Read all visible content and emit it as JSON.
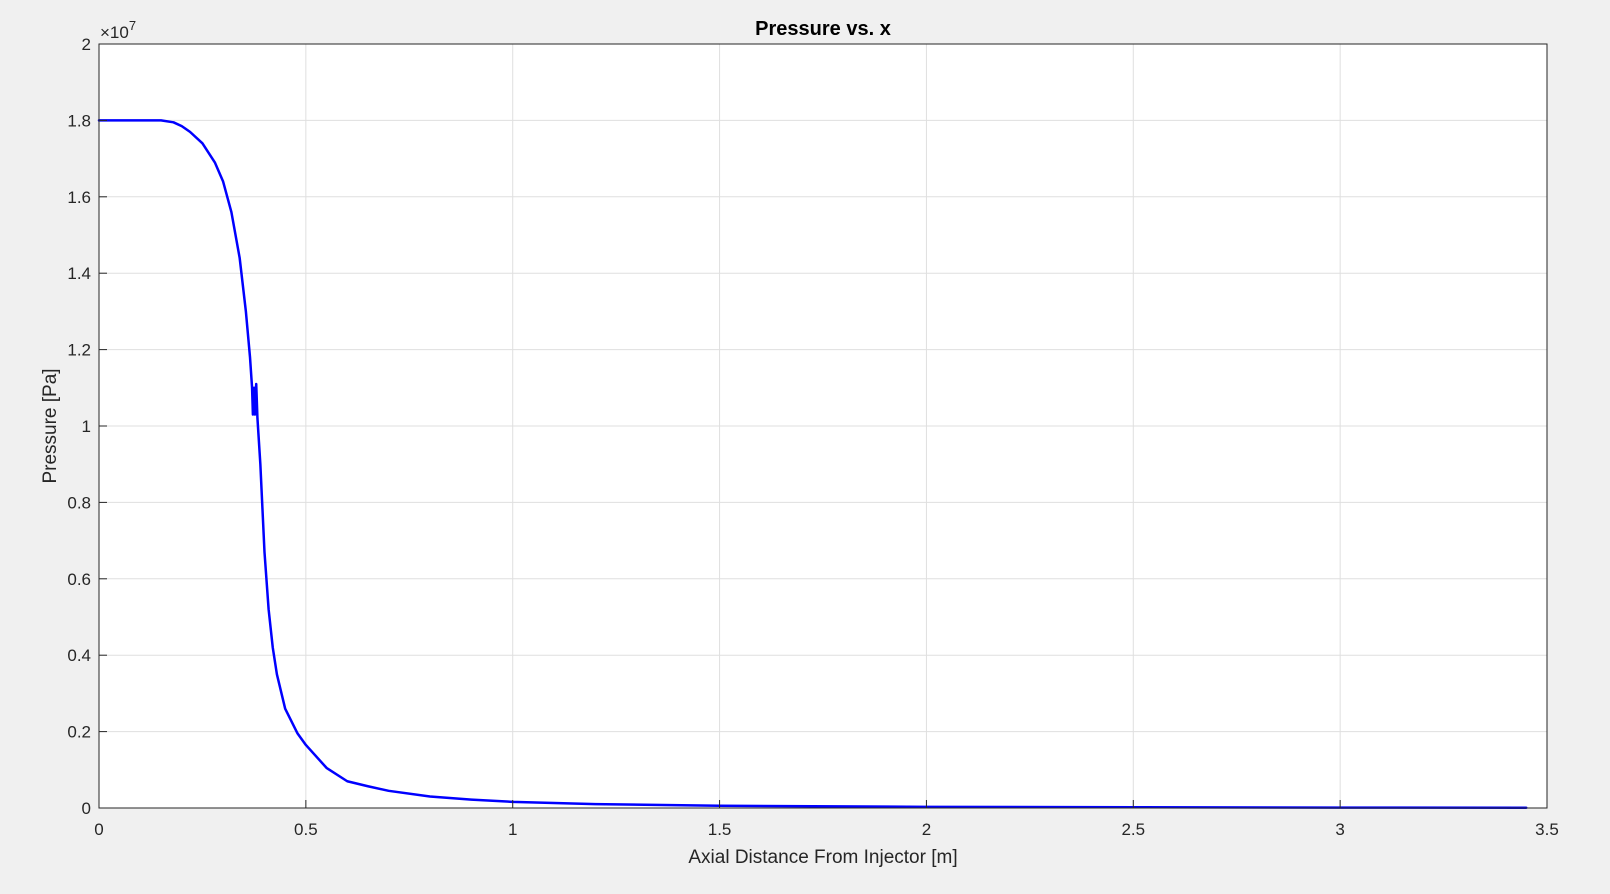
{
  "chart_data": {
    "type": "line",
    "title": "Pressure vs. x",
    "xlabel": "Axial Distance From Injector [m]",
    "ylabel": "Pressure [Pa]",
    "xlim": [
      0,
      3.5
    ],
    "ylim": [
      0,
      2
    ],
    "y_exponent_label": "×10",
    "y_exponent_power": "7",
    "x_ticks": [
      0,
      0.5,
      1,
      1.5,
      2,
      2.5,
      3,
      3.5
    ],
    "x_tick_labels": [
      "0",
      "0.5",
      "1",
      "1.5",
      "2",
      "2.5",
      "3",
      "3.5"
    ],
    "y_ticks": [
      0,
      0.2,
      0.4,
      0.6,
      0.8,
      1,
      1.2,
      1.4,
      1.6,
      1.8,
      2
    ],
    "y_tick_labels": [
      "0",
      "0.2",
      "0.4",
      "0.6",
      "0.8",
      "1",
      "1.2",
      "1.4",
      "1.6",
      "1.8",
      "2"
    ],
    "grid": true,
    "series": [
      {
        "color": "#0000ff",
        "x": [
          0,
          0.1,
          0.15,
          0.18,
          0.2,
          0.22,
          0.25,
          0.28,
          0.3,
          0.32,
          0.34,
          0.355,
          0.365,
          0.37,
          0.372,
          0.375,
          0.377,
          0.38,
          0.383,
          0.39,
          0.4,
          0.41,
          0.42,
          0.43,
          0.45,
          0.48,
          0.5,
          0.55,
          0.6,
          0.65,
          0.7,
          0.8,
          0.9,
          1.0,
          1.2,
          1.5,
          2.0,
          2.5,
          3.0,
          3.45
        ],
        "y": [
          1.8,
          1.8,
          1.8,
          1.795,
          1.785,
          1.77,
          1.74,
          1.69,
          1.64,
          1.56,
          1.44,
          1.3,
          1.18,
          1.1,
          1.03,
          1.1,
          1.03,
          1.11,
          1.02,
          0.9,
          0.67,
          0.52,
          0.42,
          0.35,
          0.26,
          0.195,
          0.165,
          0.105,
          0.07,
          0.057,
          0.045,
          0.03,
          0.022,
          0.016,
          0.01,
          0.006,
          0.003,
          0.002,
          0.001,
          0.0005
        ]
      }
    ]
  }
}
